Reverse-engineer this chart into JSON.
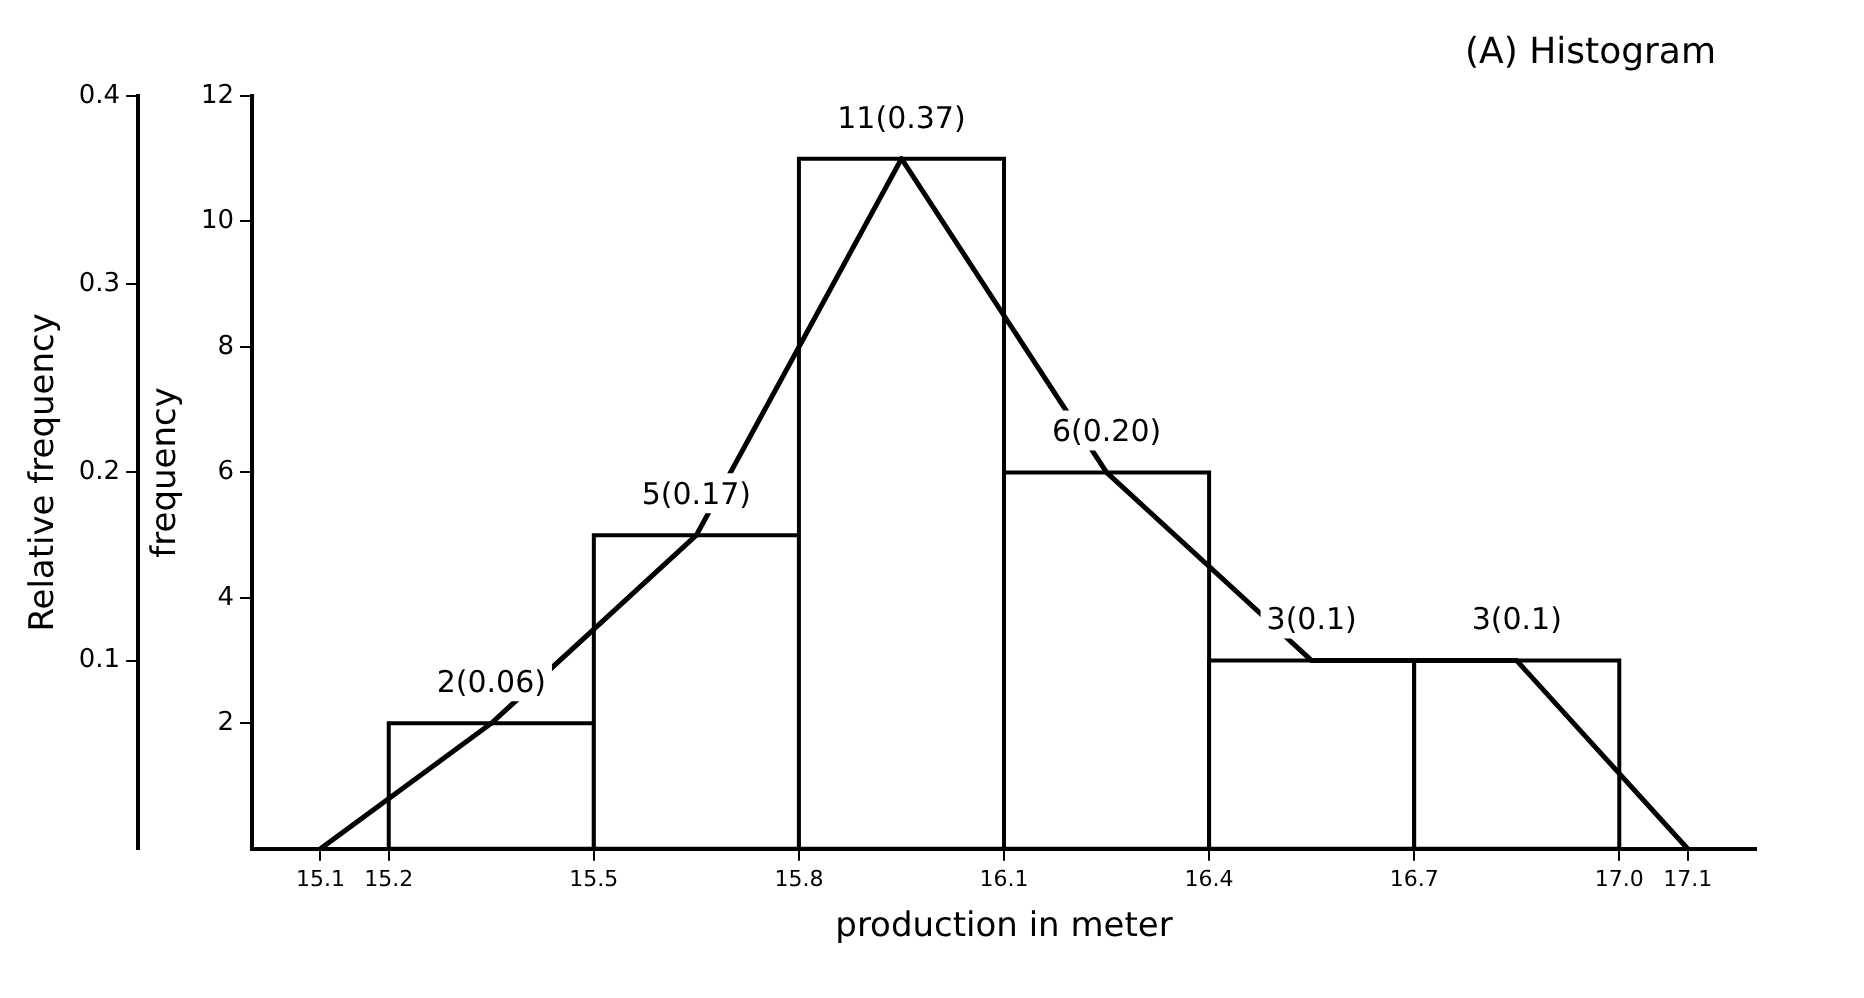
{
  "chart_data": {
    "type": "histogram",
    "xlabel": "production in meter",
    "ylabel": "frequency",
    "y2label": "Relative frequency",
    "annotations": [
      "(A) Histogram"
    ],
    "bins": [
      15.2,
      15.5,
      15.8,
      16.1,
      16.4,
      16.7,
      17.0
    ],
    "values": [
      2,
      5,
      11,
      6,
      3,
      3
    ],
    "value_labels": [
      "2(0.06)",
      "5(0.17)",
      "11(0.37)",
      "6(0.20)",
      "3(0.1)",
      "3(0.1)"
    ],
    "color": "#000000",
    "series": [
      {
        "type": "line",
        "x": [
          15.1,
          15.35,
          15.65,
          15.95,
          16.25,
          16.55,
          16.85,
          17.1
        ],
        "values": [
          0,
          2,
          5,
          11,
          6,
          3,
          3,
          0
        ],
        "color": "#000000"
      }
    ],
    "xlim": [
      15.0,
      17.2
    ],
    "xticks": [
      15.1,
      15.2,
      15.5,
      15.8,
      16.1,
      16.4,
      16.7,
      {
        "value": 17,
        "label": "17.0"
      },
      17.1
    ],
    "ylim": [
      0,
      12
    ],
    "yticks": [
      2,
      4,
      6,
      8,
      10,
      12
    ],
    "y2lim": [
      0,
      0.4
    ],
    "y2ticks": [
      0.1,
      0.2,
      0.3,
      0.4
    ],
    "grid": false,
    "legend": false,
    "marker": "none",
    "line_style": "solid"
  }
}
